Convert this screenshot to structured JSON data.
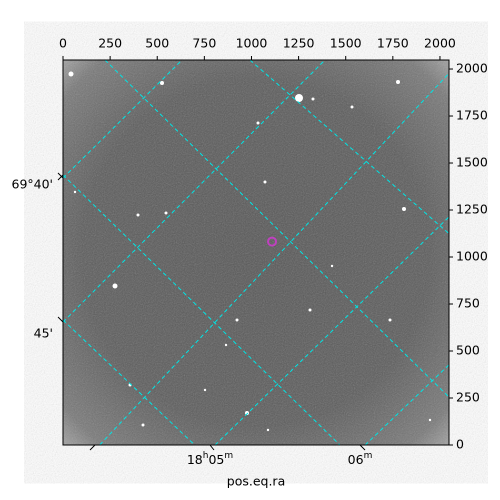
{
  "chart_data": {
    "type": "image",
    "xlim": [
      0,
      2048
    ],
    "ylim": [
      0,
      2048
    ],
    "xticks": [
      0,
      250,
      500,
      750,
      1000,
      1250,
      1500,
      1750,
      2000
    ],
    "yticks": [
      0,
      250,
      500,
      750,
      1000,
      1250,
      1500,
      1750,
      2000
    ],
    "x_label": "pos.eq.ra",
    "ra_labels": [
      [
        "18",
        "h",
        "05",
        "m"
      ],
      [
        "06",
        "m"
      ]
    ],
    "dec_labels": [
      "69°40'",
      "45'"
    ],
    "marker": {
      "x": 1109,
      "y": 1082,
      "color": "#c040c0"
    },
    "grid_color": "#00e5e5"
  }
}
